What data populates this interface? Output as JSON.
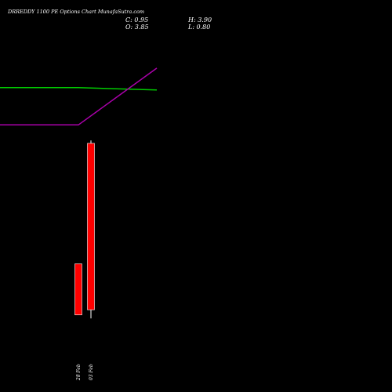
{
  "title": "DRREDDY 1100 PE Options Chart MunafaSutra.com",
  "ohlc": {
    "close": "C: 0.95",
    "open": "O: 3.85",
    "high": "H: 3.90",
    "low": "L: 0.80"
  },
  "chart_data": {
    "type": "candlestick",
    "categories": [
      "28 Feb",
      "03 Feb"
    ],
    "candles": [
      {
        "x": "28 Feb",
        "open": 1.75,
        "high": 1.75,
        "low": 0.86,
        "close": 0.86,
        "color": "#ff0000"
      },
      {
        "x": "03 Feb",
        "open": 3.85,
        "high": 3.9,
        "low": 0.8,
        "close": 0.95,
        "color": "#ff0000"
      }
    ],
    "ylim": [
      0.2,
      5.8
    ],
    "lines": [
      {
        "color": "#00cc00",
        "points": [
          [
            0,
            4.82
          ],
          [
            1,
            4.82
          ],
          [
            2,
            4.78
          ]
        ]
      },
      {
        "color": "#aa00aa",
        "points": [
          [
            0,
            4.17
          ],
          [
            1,
            4.17
          ],
          [
            2,
            5.16
          ]
        ]
      }
    ],
    "grid": false,
    "background": "#000000"
  }
}
